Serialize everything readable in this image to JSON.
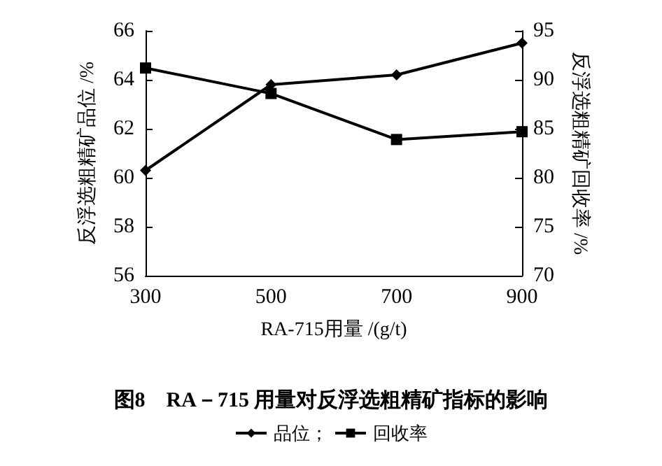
{
  "chart_data": {
    "type": "line",
    "title": "图8　RA－715 用量对反浮选粗精矿指标的影响",
    "xlabel": "RA-715用量 /(g/t)",
    "ylabel": "反浮选粗精矿品位 /%",
    "y2label": "反浮选粗精矿回收率 /%",
    "x": [
      300,
      500,
      700,
      900
    ],
    "xlim": [
      300,
      900
    ],
    "xticks": [
      300,
      500,
      700,
      900
    ],
    "ylim": [
      56,
      66
    ],
    "yticks": [
      56,
      58,
      60,
      62,
      64,
      66
    ],
    "y2lim": [
      70,
      95
    ],
    "y2ticks": [
      70,
      75,
      80,
      85,
      90,
      95
    ],
    "series": [
      {
        "name": "品位；",
        "color": "#000000",
        "marker": "diamond",
        "values": [
          60.3,
          63.8,
          64.2,
          65.5
        ]
      },
      {
        "name": "回收率",
        "color": "#000000",
        "marker": "square",
        "axis": "y2",
        "values": [
          91.2,
          88.6,
          83.9,
          84.7
        ]
      }
    ],
    "legend": "bottom",
    "grid": false,
    "line_style": "solid"
  }
}
